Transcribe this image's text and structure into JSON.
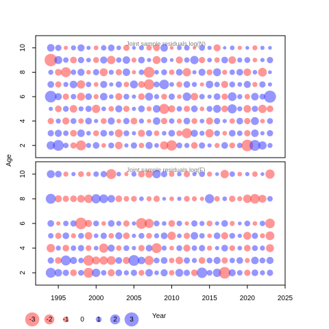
{
  "chart_data": {
    "type": "scatter",
    "subtype": "bubble-residuals",
    "ylabel": "Age",
    "xlabel": "Year",
    "x_ticks": [
      1995,
      2000,
      2005,
      2010,
      2015,
      2020,
      2025
    ],
    "xlim": [
      1992,
      2025
    ],
    "colors": {
      "positive": "#4040ff",
      "negative": "#ff4040"
    },
    "legend": {
      "title": "Year",
      "placement": "bottom-left",
      "values": [
        "-3",
        "-2",
        "-1",
        "0",
        "1",
        "2",
        "3"
      ]
    },
    "panels": [
      {
        "title": "Joint sample residuals log(N)",
        "ylim": [
          1,
          11
        ],
        "y_ticks": [
          2,
          4,
          6,
          8,
          10
        ],
        "ages": [
          2,
          3,
          4,
          5,
          6,
          7,
          8,
          9,
          10
        ],
        "years_start": 1994,
        "years_end": 2023,
        "residuals": {
          "10": [
            1.4,
            1.1,
            -0.6,
            0.8,
            1.3,
            0.6,
            -0.7,
            0.9,
            1.2,
            0.7,
            -1.1,
            0.5,
            0.8,
            -0.9,
            -1.2,
            1.4,
            -0.5,
            0.7,
            0.9,
            -0.4,
            1.0,
            0.6,
            -1.3,
            0.4,
            0.7,
            -0.6,
            0.5,
            -0.8,
            0.6,
            0.5
          ],
          "9": [
            -2.6,
            1.5,
            0.9,
            -1.2,
            1.1,
            0.7,
            -1.0,
            1.3,
            -1.6,
            0.9,
            1.4,
            -0.8,
            1.2,
            0.6,
            -1.5,
            1.1,
            0.5,
            -1.3,
            0.9,
            1.6,
            -1.1,
            0.7,
            -0.9,
            1.2,
            -1.4,
            0.8,
            1.0,
            -0.7,
            0.6,
            1.1
          ],
          "8": [
            0.8,
            -1.2,
            -2.0,
            0.9,
            1.3,
            -0.7,
            1.1,
            -1.5,
            0.8,
            -1.1,
            1.4,
            -0.6,
            0.9,
            -2.2,
            0.7,
            1.0,
            -0.9,
            1.2,
            -1.6,
            0.6,
            1.3,
            -1.0,
            1.5,
            -0.8,
            0.9,
            1.2,
            -1.4,
            0.7,
            -1.7,
            0.5
          ],
          "7": [
            1.2,
            -1.1,
            0.8,
            1.4,
            -1.6,
            0.9,
            -0.7,
            1.3,
            0.6,
            1.1,
            -0.9,
            1.5,
            -1.2,
            -2.1,
            1.0,
            1.9,
            0.7,
            -1.0,
            1.2,
            0.8,
            -0.6,
            1.4,
            0.9,
            -1.3,
            1.0,
            0.7,
            1.3,
            -0.8,
            1.1,
            0.6
          ],
          "6": [
            2.4,
            1.3,
            -1.1,
            0.9,
            -1.5,
            1.2,
            -0.8,
            1.4,
            0.7,
            -1.3,
            1.0,
            0.6,
            -1.2,
            1.5,
            0.8,
            -1.0,
            1.1,
            -0.7,
            1.6,
            -1.4,
            0.9,
            0.6,
            1.2,
            -1.1,
            1.7,
            0.8,
            -0.9,
            1.4,
            1.0,
            2.5
          ],
          "5": [
            0.6,
            -1.2,
            1.0,
            -1.4,
            0.8,
            1.1,
            -1.6,
            0.7,
            -0.9,
            1.3,
            -1.1,
            0.6,
            1.2,
            -0.8,
            1.4,
            -2.0,
            -1.3,
            0.9,
            -1.1,
            1.2,
            -0.7,
            1.0,
            1.5,
            -1.2,
            1.8,
            0.8,
            -1.4,
            1.1,
            -1.6,
            -1.2
          ],
          "4": [
            -1.1,
            0.8,
            -1.3,
            1.0,
            -0.9,
            1.2,
            0.6,
            -1.0,
            1.3,
            -0.7,
            1.1,
            -1.2,
            0.8,
            -0.6,
            1.4,
            -1.1,
            0.9,
            -0.8,
            1.2,
            -1.0,
            0.7,
            -1.3,
            1.1,
            0.6,
            -0.9,
            1.2,
            -1.1,
            1.5,
            -0.7,
            1.0
          ],
          "3": [
            1.1,
            1.3,
            0.9,
            -1.2,
            1.4,
            0.7,
            -1.0,
            1.2,
            0.8,
            -1.5,
            1.0,
            0.6,
            -1.3,
            1.1,
            -0.9,
            0.7,
            1.2,
            -1.0,
            -2.0,
            1.3,
            0.8,
            -1.6,
            1.0,
            -0.7,
            1.2,
            0.9,
            -1.1,
            1.4,
            0.6,
            1.1
          ],
          "2": [
            1.6,
            2.2,
            0.9,
            -1.1,
            -2.0,
            0.8,
            1.2,
            -0.7,
            1.0,
            -1.4,
            0.6,
            1.1,
            -0.9,
            1.3,
            0.7,
            -1.6,
            -2.1,
            1.0,
            0.8,
            -1.2,
            1.1,
            0.6,
            -0.8,
            1.2,
            -1.0,
            0.9,
            -2.4,
            2.2,
            1.6,
            0.8
          ]
        }
      },
      {
        "title": "Joint sample residuals log(F)",
        "ylim": [
          1,
          11
        ],
        "y_ticks": [
          2,
          4,
          6,
          8,
          10
        ],
        "ages": [
          2,
          3,
          4,
          5,
          6,
          8,
          10
        ],
        "years_start": 1994,
        "years_end": 2023,
        "residuals": {
          "10": [
            1.5,
            1.2,
            -0.8,
            0.6,
            -1.0,
            -0.7,
            0.9,
            1.1,
            -2.0,
            0.7,
            -0.6,
            0.8,
            -1.2,
            -1.4,
            1.6,
            1.1,
            -0.9,
            0.7,
            -1.1,
            0.6,
            1.0,
            -0.8,
            0.5,
            -1.6,
            0.9,
            -0.7,
            0.6,
            -0.9,
            0.5,
            -1.8
          ],
          "8": [
            2.0,
            -1.3,
            -1.1,
            -1.2,
            -1.4,
            -1.6,
            1.8,
            1.7,
            1.4,
            -1.2,
            -0.9,
            -1.0,
            0.7,
            -0.8,
            -1.1,
            0.5,
            -0.7,
            0.6,
            -1.0,
            -0.8,
            -0.6,
            1.8,
            -0.9,
            0.7,
            -1.1,
            -0.8,
            -1.6,
            -1.9,
            -1.5,
            0.9
          ],
          "6": [
            1.2,
            -0.6,
            0.9,
            1.1,
            -2.4,
            -1.3,
            1.0,
            -0.7,
            1.2,
            0.8,
            -1.1,
            0.6,
            -2.2,
            -1.8,
            1.0,
            0.7,
            -1.2,
            0.9,
            -0.6,
            1.1,
            0.8,
            -1.0,
            0.6,
            1.2,
            -0.8,
            0.5,
            1.0,
            -0.7,
            0.9,
            -1.9
          ],
          "5": [
            0.9,
            -1.1,
            1.2,
            -0.8,
            1.0,
            -1.4,
            0.7,
            1.1,
            -0.9,
            1.3,
            -1.2,
            0.6,
            1.0,
            -1.0,
            0.8,
            1.2,
            -1.6,
            0.7,
            -1.1,
            1.4,
            0.9,
            -0.7,
            1.2,
            -1.3,
            1.0,
            0.6,
            -1.5,
            1.1,
            -0.8,
            -1.7
          ],
          "4": [
            -1.6,
            0.8,
            -1.2,
            0.9,
            1.1,
            -1.0,
            0.7,
            -1.8,
            1.3,
            -0.9,
            1.0,
            0.6,
            -1.1,
            1.2,
            -2.0,
            0.8,
            -0.7,
            1.0,
            -1.3,
            0.9,
            1.1,
            -0.8,
            0.6,
            1.2,
            -1.0,
            0.7,
            -1.2,
            1.0,
            0.8,
            -1.5
          ],
          "3": [
            1.1,
            -1.2,
            2.0,
            1.3,
            0.9,
            -2.1,
            -1.5,
            -1.6,
            -1.7,
            1.2,
            -1.3,
            2.2,
            1.4,
            -1.8,
            1.0,
            1.2,
            -0.9,
            -1.4,
            1.1,
            0.8,
            -1.2,
            1.0,
            1.3,
            -1.1,
            0.9,
            1.2,
            -0.8,
            1.4,
            1.0,
            1.3
          ],
          "2": [
            2.0,
            1.4,
            1.1,
            -1.2,
            1.0,
            -2.0,
            1.6,
            0.9,
            -1.3,
            1.2,
            0.8,
            1.1,
            -1.0,
            1.4,
            0.7,
            1.3,
            -0.9,
            1.5,
            1.1,
            -1.2,
            2.1,
            1.0,
            1.6,
            -2.4,
            1.3,
            0.9,
            -1.1,
            1.2,
            0.8,
            1.1
          ]
        }
      }
    ]
  }
}
